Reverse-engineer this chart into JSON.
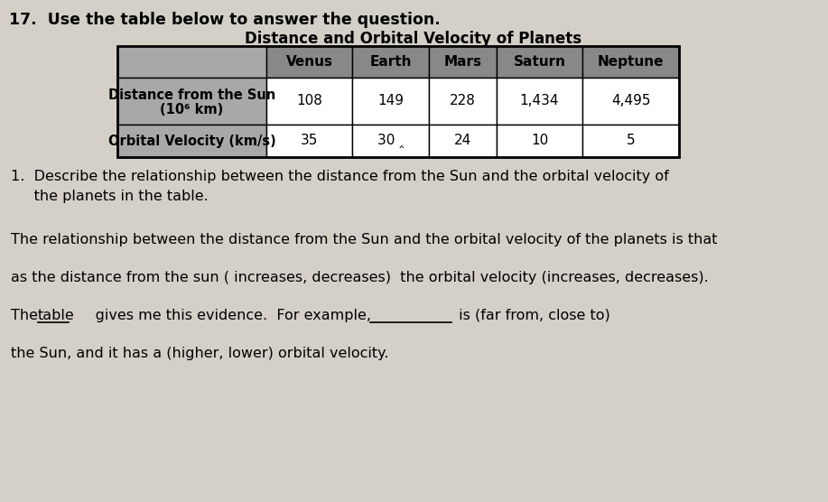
{
  "title_bold": "17.  Use the table below to answer the question.",
  "table_title": "Distance and Orbital Velocity of Planets",
  "col_headers": [
    "Venus",
    "Earth",
    "Mars",
    "Saturn",
    "Neptune"
  ],
  "row_header_0_line1": "Distance from the Sun",
  "row_header_0_line2": "(10⁶ km)",
  "row_header_1": "Orbital Velocity (km/s)",
  "distances": [
    "108",
    "149",
    "228",
    "1,434",
    "4,495"
  ],
  "velocities": [
    "35",
    "30",
    "24",
    "10",
    "5"
  ],
  "earth_velocity_display": "30 ⎿",
  "question": "1.  Describe the relationship between the distance from the Sun and the orbital velocity of\n     the planets in the table.",
  "para1": "The relationship between the distance from the Sun and the orbital velocity of the planets is that",
  "para2": "as the distance from the sun ( increases, decreases)  the orbital velocity (increases, decreases).",
  "para3_pre": "The ",
  "para3_underlined": "table",
  "para3_post": "     gives me this evidence.  For example,",
  "para3_blank_post": " is (far from, close to)",
  "para4": "the Sun, and it has a (higher, lower) orbital velocity.",
  "bg_color": "#d4d0c8",
  "table_label_bg": "#a8a8a8",
  "table_header_bg": "#888888",
  "table_data_bg": "#ffffff",
  "border_color": "#000000",
  "text_color": "#000000"
}
